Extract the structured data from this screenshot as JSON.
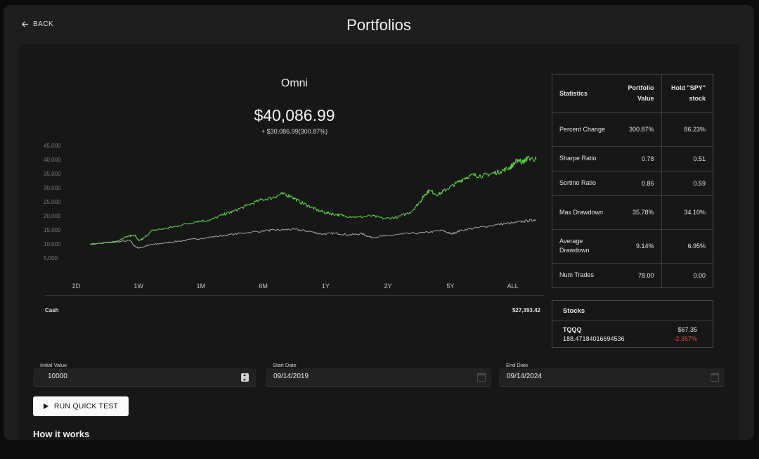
{
  "header": {
    "back_label": "BACK",
    "title": "Portfolios"
  },
  "portfolio": {
    "name": "Omni",
    "value": "$40,086.99",
    "change": "+ $30,086.99(300.87%)"
  },
  "chart_data": {
    "type": "line",
    "title": "",
    "y_ticks": [
      "45,000",
      "40,000",
      "35,000",
      "30,000",
      "25,000",
      "20,000",
      "15,000",
      "10,000",
      "5,000"
    ],
    "ylim": [
      5000,
      45000
    ],
    "xlim": [
      0,
      100
    ],
    "series": [
      {
        "color": "#5fd64a",
        "points": [
          [
            0,
            10000
          ],
          [
            3,
            10200
          ],
          [
            6,
            11000
          ],
          [
            8,
            12500
          ],
          [
            10,
            13200
          ],
          [
            11,
            11000
          ],
          [
            12,
            12000
          ],
          [
            14,
            14800
          ],
          [
            17,
            15500
          ],
          [
            20,
            16500
          ],
          [
            24,
            18000
          ],
          [
            27,
            18500
          ],
          [
            30,
            20500
          ],
          [
            32,
            21500
          ],
          [
            35,
            23500
          ],
          [
            38,
            25500
          ],
          [
            41,
            26500
          ],
          [
            43,
            27800
          ],
          [
            45,
            27000
          ],
          [
            47,
            25000
          ],
          [
            49,
            23500
          ],
          [
            51,
            22000
          ],
          [
            53,
            21000
          ],
          [
            55,
            20500
          ],
          [
            57,
            20000
          ],
          [
            60,
            19500
          ],
          [
            63,
            20000
          ],
          [
            66,
            19000
          ],
          [
            69,
            19500
          ],
          [
            72,
            21500
          ],
          [
            74,
            25000
          ],
          [
            75,
            27500
          ],
          [
            76,
            29000
          ],
          [
            78,
            27500
          ],
          [
            80,
            29500
          ],
          [
            82,
            31500
          ],
          [
            84,
            33500
          ],
          [
            86,
            34500
          ],
          [
            88,
            34200
          ],
          [
            90,
            35000
          ],
          [
            92,
            35800
          ],
          [
            94,
            37000
          ],
          [
            95,
            38500
          ],
          [
            96,
            40000
          ],
          [
            97,
            39000
          ],
          [
            98,
            40500
          ],
          [
            100,
            40087
          ]
        ]
      },
      {
        "color": "#a6a6a6",
        "points": [
          [
            0,
            10000
          ],
          [
            5,
            10500
          ],
          [
            9,
            11200
          ],
          [
            10,
            9200
          ],
          [
            11,
            8500
          ],
          [
            13,
            9500
          ],
          [
            16,
            10200
          ],
          [
            20,
            11000
          ],
          [
            25,
            12000
          ],
          [
            30,
            13000
          ],
          [
            35,
            14000
          ],
          [
            40,
            14800
          ],
          [
            43,
            15000
          ],
          [
            46,
            15200
          ],
          [
            49,
            14500
          ],
          [
            52,
            13500
          ],
          [
            55,
            13800
          ],
          [
            58,
            13200
          ],
          [
            61,
            13600
          ],
          [
            63,
            12300
          ],
          [
            66,
            12800
          ],
          [
            70,
            13500
          ],
          [
            75,
            14000
          ],
          [
            79,
            14800
          ],
          [
            81,
            13500
          ],
          [
            83,
            14800
          ],
          [
            87,
            15800
          ],
          [
            91,
            16800
          ],
          [
            95,
            17500
          ],
          [
            98,
            18200
          ],
          [
            100,
            18623
          ]
        ]
      }
    ]
  },
  "ranges": [
    "2D",
    "1W",
    "1M",
    "6M",
    "1Y",
    "2Y",
    "5Y",
    "ALL"
  ],
  "active_range": "5Y",
  "cash": {
    "label": "Cash",
    "value": "$27,393.42"
  },
  "stats": {
    "headers": [
      "Statistics",
      "Portfolio Value",
      "Hold \"SPY\" stock"
    ],
    "rows": [
      {
        "label": "Percent Change",
        "portfolio": "300.87%",
        "hold": "86.23%"
      },
      {
        "label": "Sharpe Ratio",
        "portfolio": "0.78",
        "hold": "0.51"
      },
      {
        "label": "Sortino Ratio",
        "portfolio": "0.86",
        "hold": "0.59"
      },
      {
        "label": "Max Drawdown",
        "portfolio": "35.78%",
        "hold": "34.10%"
      },
      {
        "label": "Average Drawdown",
        "portfolio": "9.14%",
        "hold": "6.95%"
      },
      {
        "label": "Num Trades",
        "portfolio": "78.00",
        "hold": "0.00"
      }
    ]
  },
  "stocks": {
    "title": "Stocks",
    "items": [
      {
        "symbol": "TQQQ",
        "shares": "188.47184016694536",
        "price": "$67.35",
        "change": "-2.357%"
      }
    ]
  },
  "form": {
    "initial_value": {
      "label": "Initial Value",
      "value": "10000"
    },
    "start_date": {
      "label": "Start Date",
      "value": "09/14/2019"
    },
    "end_date": {
      "label": "End Date",
      "value": "09/14/2024"
    },
    "run_label": "RUN QUICK TEST"
  },
  "how_it_works": "How it works",
  "colors": {
    "portfolio_line": "#5fd64a",
    "benchmark_line": "#a6a6a6",
    "negative": "#e0433a"
  }
}
